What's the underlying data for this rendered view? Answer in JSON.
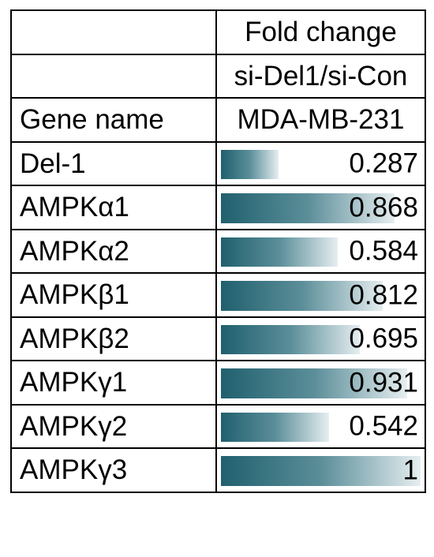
{
  "chart_data": {
    "type": "table",
    "header": {
      "col2_line1": "Fold change",
      "col2_line2": "si-Del1/si-Con",
      "col1_line3": "Gene name",
      "col2_line3": "MDA-MB-231"
    },
    "rows": [
      {
        "gene": "Del-1",
        "value": 0.287,
        "value_text": "0.287"
      },
      {
        "gene": "AMPKα1",
        "value": 0.868,
        "value_text": "0.868"
      },
      {
        "gene": "AMPKα2",
        "value": 0.584,
        "value_text": "0.584"
      },
      {
        "gene": "AMPKβ1",
        "value": 0.812,
        "value_text": "0.812"
      },
      {
        "gene": "AMPKβ2",
        "value": 0.695,
        "value_text": "0.695"
      },
      {
        "gene": "AMPKγ1",
        "value": 0.931,
        "value_text": "0.931"
      },
      {
        "gene": "AMPKγ2",
        "value": 0.542,
        "value_text": "0.542"
      },
      {
        "gene": "AMPKγ3",
        "value": 1,
        "value_text": "1"
      }
    ],
    "bar_max": 1,
    "colors": {
      "bar_dark": "#20606e",
      "bar_light": "#e6eef0"
    }
  }
}
